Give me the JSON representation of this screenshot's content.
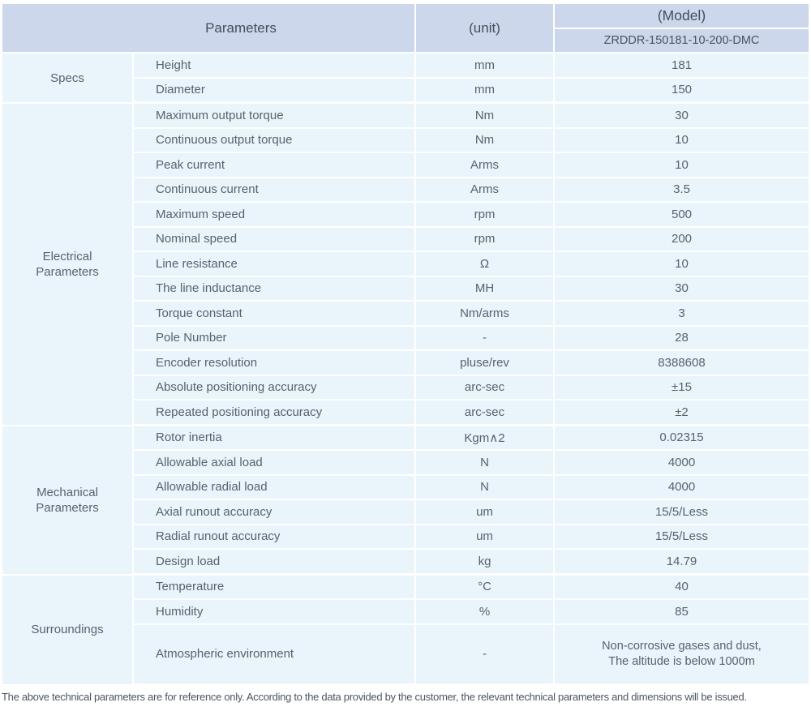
{
  "header": {
    "parameters_label": "Parameters",
    "unit_label": "(unit)",
    "model_label": "(Model)",
    "model_value": "ZRDDR-150181-10-200-DMC"
  },
  "sections": [
    {
      "category_lines": [
        "Specs"
      ],
      "rows": [
        {
          "param": "Height",
          "unit": "mm",
          "value": "181"
        },
        {
          "param": "Diameter",
          "unit": "mm",
          "value": "150"
        }
      ]
    },
    {
      "category_lines": [
        "Electrical",
        "Parameters"
      ],
      "rows": [
        {
          "param": "Maximum output torque",
          "unit": "Nm",
          "value": "30"
        },
        {
          "param": "Continuous output torque",
          "unit": "Nm",
          "value": "10"
        },
        {
          "param": "Peak current",
          "unit": "Arms",
          "value": "10"
        },
        {
          "param": "Continuous current",
          "unit": "Arms",
          "value": "3.5"
        },
        {
          "param": "Maximum speed",
          "unit": "rpm",
          "value": "500"
        },
        {
          "param": "Nominal speed",
          "unit": "rpm",
          "value": "200"
        },
        {
          "param": "Line resistance",
          "unit": "Ω",
          "value": "10"
        },
        {
          "param": "The line inductance",
          "unit": "MH",
          "value": "30"
        },
        {
          "param": "Torque constant",
          "unit": "Nm/arms",
          "value": "3"
        },
        {
          "param": "Pole Number",
          "unit": "-",
          "value": "28"
        },
        {
          "param": "Encoder resolution",
          "unit": "pluse/rev",
          "value": "8388608"
        },
        {
          "param": "Absolute positioning accuracy",
          "unit": "arc-sec",
          "value": "±15"
        },
        {
          "param": "Repeated positioning accuracy",
          "unit": "arc-sec",
          "value": "±2"
        }
      ]
    },
    {
      "category_lines": [
        "Mechanical",
        "Parameters"
      ],
      "rows": [
        {
          "param": "Rotor inertia",
          "unit": "Kgm∧2",
          "value": "0.02315"
        },
        {
          "param": "Allowable axial load",
          "unit": "N",
          "value": "4000"
        },
        {
          "param": "Allowable radial load",
          "unit": "N",
          "value": "4000"
        },
        {
          "param": "Axial runout accuracy",
          "unit": "um",
          "value": "15/5/Less"
        },
        {
          "param": "Radial runout accuracy",
          "unit": "um",
          "value": "15/5/Less"
        },
        {
          "param": "Design load",
          "unit": "kg",
          "value": "14.79"
        }
      ]
    },
    {
      "category_lines": [
        "Surroundings"
      ],
      "rows": [
        {
          "param": "Temperature",
          "unit": "°C",
          "value": "40"
        },
        {
          "param": "Humidity",
          "unit": "%",
          "value": "85"
        },
        {
          "param": "Atmospheric environment",
          "unit": "-",
          "value_lines": [
            "Non-corrosive gases and dust,",
            "The altitude is below 1000m"
          ],
          "tall": true
        }
      ]
    }
  ],
  "footer": {
    "note": "The above technical parameters are for reference only. According to the data provided by the customer, the relevant technical parameters and dimensions will be issued."
  },
  "colors": {
    "header_bg": "#ccd7ec",
    "cell_bg": "#e9f4fb",
    "separator": "#ffffff",
    "body_text": "#58626b"
  }
}
